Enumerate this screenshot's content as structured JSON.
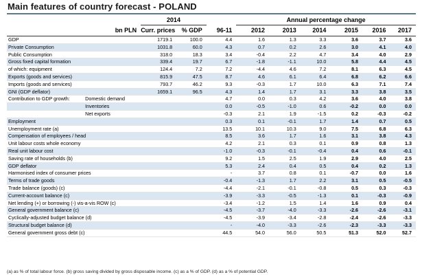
{
  "title": "Main features of country forecast - POLAND",
  "header": {
    "year_group": "2014",
    "annual_group": "Annual percentage change",
    "col_bn": "bn PLN",
    "col_curr": "Curr. prices",
    "col_gdp": "% GDP",
    "col_9611": "96-11",
    "years": [
      "2012",
      "2013",
      "2014",
      "2015",
      "2016",
      "2017"
    ]
  },
  "rows": [
    {
      "label": "GDP",
      "sub": "",
      "bn": "1719.1",
      "gdp": "100.0",
      "avg": "4.4",
      "y": [
        "1.6",
        "1.3",
        "3.3",
        "3.6",
        "3.7",
        "3.6"
      ],
      "shade": false
    },
    {
      "label": "Private Consumption",
      "sub": "",
      "bn": "1031.8",
      "gdp": "60.0",
      "avg": "4.3",
      "y": [
        "0.7",
        "0.2",
        "2.6",
        "3.0",
        "4.1",
        "4.0"
      ],
      "shade": true
    },
    {
      "label": "Public Consumption",
      "sub": "",
      "bn": "318.0",
      "gdp": "18.3",
      "avg": "3.4",
      "y": [
        "-0.4",
        "2.2",
        "4.7",
        "3.4",
        "4.0",
        "2.9"
      ],
      "shade": false
    },
    {
      "label": "Gross fixed capital formation",
      "sub": "",
      "bn": "339.4",
      "gdp": "19.7",
      "avg": "6.7",
      "y": [
        "-1.8",
        "-1.1",
        "10.0",
        "5.8",
        "4.4",
        "4.5"
      ],
      "shade": true
    },
    {
      "label": "of which: equipment",
      "sub": "",
      "bn": "124.4",
      "gdp": "7.2",
      "avg": "7.2",
      "y": [
        "-4.4",
        "4.6",
        "7.2",
        "8.1",
        "6.3",
        "4.5"
      ],
      "shade": false
    },
    {
      "label": "Exports (goods and services)",
      "sub": "",
      "bn": "815.9",
      "gdp": "47.5",
      "avg": "8.7",
      "y": [
        "4.6",
        "6.1",
        "6.4",
        "6.8",
        "6.2",
        "6.6"
      ],
      "shade": true
    },
    {
      "label": "Imports (goods and services)",
      "sub": "",
      "bn": "793.7",
      "gdp": "46.2",
      "avg": "9.3",
      "y": [
        "-0.3",
        "1.7",
        "10.0",
        "6.3",
        "7.1",
        "7.4"
      ],
      "shade": false
    },
    {
      "label": "GNI (GDP deflator)",
      "sub": "",
      "bn": "1659.1",
      "gdp": "96.5",
      "avg": "4.3",
      "y": [
        "1.4",
        "1.7",
        "3.1",
        "3.3",
        "3.8",
        "3.5"
      ],
      "shade": true
    },
    {
      "label": "Contribution to GDP growth:",
      "sub": "Domestic demand",
      "bn": "",
      "gdp": "",
      "avg": "4.7",
      "y": [
        "0.0",
        "0.3",
        "4.2",
        "3.6",
        "4.0",
        "3.8"
      ],
      "shade": false
    },
    {
      "label": "",
      "sub": "Inventories",
      "bn": "",
      "gdp": "",
      "avg": "0.0",
      "y": [
        "-0.5",
        "-1.0",
        "0.6",
        "-0.2",
        "0.0",
        "0.0"
      ],
      "shade": true
    },
    {
      "label": "",
      "sub": "Net exports",
      "bn": "",
      "gdp": "",
      "avg": "-0.3",
      "y": [
        "2.1",
        "1.9",
        "-1.5",
        "0.2",
        "-0.3",
        "-0.2"
      ],
      "shade": false
    },
    {
      "label": "Employment",
      "sub": "",
      "bn": "",
      "gdp": "",
      "avg": "0.3",
      "y": [
        "0.1",
        "-0.1",
        "1.7",
        "1.4",
        "0.7",
        "0.5"
      ],
      "shade": true
    },
    {
      "label": "Unemployment rate (a)",
      "sub": "",
      "bn": "",
      "gdp": "",
      "avg": "13.5",
      "y": [
        "10.1",
        "10.3",
        "9.0",
        "7.5",
        "6.8",
        "6.3"
      ],
      "shade": false
    },
    {
      "label": "Compensation of employees / head",
      "sub": "",
      "bn": "",
      "gdp": "",
      "avg": "8.5",
      "y": [
        "3.6",
        "1.7",
        "1.6",
        "3.1",
        "3.8",
        "4.3"
      ],
      "shade": true
    },
    {
      "label": "Unit labour costs whole economy",
      "sub": "",
      "bn": "",
      "gdp": "",
      "avg": "4.2",
      "y": [
        "2.1",
        "0.3",
        "0.1",
        "0.9",
        "0.8",
        "1.3"
      ],
      "shade": false
    },
    {
      "label": "Real unit labour cost",
      "sub": "",
      "bn": "",
      "gdp": "",
      "avg": "-1.0",
      "y": [
        "-0.3",
        "-0.1",
        "-0.4",
        "0.4",
        "0.6",
        "-0.1"
      ],
      "shade": true
    },
    {
      "label": "Saving rate of households (b)",
      "sub": "",
      "bn": "",
      "gdp": "",
      "avg": "9.2",
      "y": [
        "1.5",
        "2.5",
        "1.9",
        "2.9",
        "4.0",
        "2.5"
      ],
      "shade": false
    },
    {
      "label": "GDP deflator",
      "sub": "",
      "bn": "",
      "gdp": "",
      "avg": "5.3",
      "y": [
        "2.4",
        "0.4",
        "0.5",
        "0.4",
        "0.2",
        "1.3"
      ],
      "shade": true
    },
    {
      "label": "Harmonised index of consumer prices",
      "sub": "",
      "bn": "",
      "gdp": "",
      "avg": "-",
      "y": [
        "3.7",
        "0.8",
        "0.1",
        "-0.7",
        "0.0",
        "1.6"
      ],
      "shade": false
    },
    {
      "label": "Terms of trade goods",
      "sub": "",
      "bn": "",
      "gdp": "",
      "avg": "-0.4",
      "y": [
        "-1.3",
        "1.7",
        "2.2",
        "3.1",
        "0.5",
        "-0.5"
      ],
      "shade": true
    },
    {
      "label": "Trade balance (goods) (c)",
      "sub": "",
      "bn": "",
      "gdp": "",
      "avg": "-4.4",
      "y": [
        "-2.1",
        "-0.1",
        "-0.8",
        "0.5",
        "0.3",
        "-0.3"
      ],
      "shade": false
    },
    {
      "label": "Current-account balance (c)",
      "sub": "",
      "bn": "",
      "gdp": "",
      "avg": "-3.9",
      "y": [
        "-3.3",
        "-0.5",
        "-1.3",
        "0.1",
        "-0.3",
        "-0.9"
      ],
      "shade": true
    },
    {
      "label": "Net lending (+) or borrowing (-) vis-a-vis ROW (c)",
      "sub": "",
      "bn": "",
      "gdp": "",
      "avg": "-3.4",
      "y": [
        "-1.2",
        "1.5",
        "1.4",
        "1.6",
        "0.9",
        "0.4"
      ],
      "shade": false
    },
    {
      "label": "General government balance (c)",
      "sub": "",
      "bn": "",
      "gdp": "",
      "avg": "-4.5",
      "y": [
        "-3.7",
        "-4.0",
        "-3.3",
        "-2.6",
        "-2.6",
        "-3.1"
      ],
      "shade": true
    },
    {
      "label": "Cyclically-adjusted budget balance (d)",
      "sub": "",
      "bn": "",
      "gdp": "",
      "avg": "-4.5",
      "y": [
        "-3.9",
        "-3.4",
        "-2.8",
        "-2.4",
        "-2.6",
        "-3.3"
      ],
      "shade": false
    },
    {
      "label": "Structural budget balance (d)",
      "sub": "",
      "bn": "",
      "gdp": "",
      "avg": "-",
      "y": [
        "-4.0",
        "-3.3",
        "-2.6",
        "-2.3",
        "-3.3",
        "-3.3"
      ],
      "shade": true
    },
    {
      "label": "General government gross debt (c)",
      "sub": "",
      "bn": "",
      "gdp": "",
      "avg": "44.5",
      "y": [
        "54.0",
        "56.0",
        "50.5",
        "51.3",
        "52.0",
        "52.7"
      ],
      "shade": false
    }
  ],
  "footnote": "(a) as % of total labour force. (b) gross saving divided by gross disposable income. (c) as a % of  GDP. (d) as a % of  potential GDP."
}
